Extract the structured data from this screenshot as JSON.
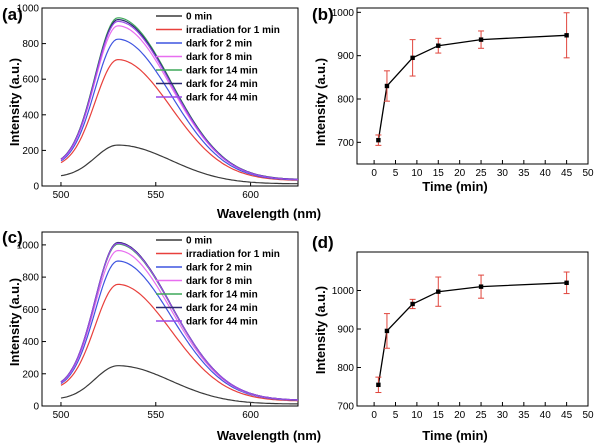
{
  "chart_data": [
    {
      "panel": "(a)",
      "type": "line",
      "xlabel": "Wavelength (nm)",
      "ylabel": "Intensity (a.u.)",
      "xlim": [
        490,
        625
      ],
      "ylim": [
        0,
        1000
      ],
      "xticks": [
        500,
        550,
        600
      ],
      "yticks": [
        0,
        200,
        400,
        600,
        800,
        1000
      ],
      "legend": "top-right",
      "peak_x": 530,
      "series": [
        {
          "name": "0 min",
          "color": "#3a3a3a",
          "start": 50,
          "peak": 230,
          "end": 12
        },
        {
          "name": "irradiation for 1 min",
          "color": "#e8403c",
          "start": 105,
          "peak": 710,
          "end": 30
        },
        {
          "name": "dark for 2 min",
          "color": "#3f55e0",
          "start": 110,
          "peak": 825,
          "end": 32
        },
        {
          "name": "dark for 8 min",
          "color": "#e86ef0",
          "start": 112,
          "peak": 900,
          "end": 34
        },
        {
          "name": "dark for 14  min",
          "color": "#3fa85a",
          "start": 115,
          "peak": 945,
          "end": 35
        },
        {
          "name": "dark for 24  min",
          "color": "#2a2a70",
          "start": 115,
          "peak": 935,
          "end": 35
        },
        {
          "name": "dark for 44 min",
          "color": "#9a4ae8",
          "start": 114,
          "peak": 925,
          "end": 34
        }
      ]
    },
    {
      "panel": "(b)",
      "type": "line",
      "xlabel": "Time (min)",
      "ylabel": "Intensity (a.u.)",
      "xlim": [
        -4,
        50
      ],
      "ylim": [
        650,
        1010
      ],
      "xticks": [
        0,
        5,
        10,
        15,
        20,
        25,
        30,
        35,
        40,
        45,
        50
      ],
      "yticks": [
        700,
        800,
        900,
        1000
      ],
      "x": [
        1,
        3,
        9,
        15,
        25,
        45
      ],
      "y": [
        705,
        830,
        895,
        923,
        937,
        947
      ],
      "err": [
        12,
        35,
        42,
        17,
        20,
        52
      ]
    },
    {
      "panel": "(c)",
      "type": "line",
      "xlabel": "Wavelength (nm)",
      "ylabel": "Intensity (a.u.)",
      "xlim": [
        490,
        625
      ],
      "ylim": [
        0,
        1080
      ],
      "xticks": [
        500,
        550,
        600
      ],
      "yticks": [
        0,
        200,
        400,
        600,
        800,
        1000
      ],
      "legend": "top-right",
      "peak_x": 530,
      "series": [
        {
          "name": "0 min",
          "color": "#3a3a3a",
          "start": 40,
          "peak": 250,
          "end": 12
        },
        {
          "name": "irradiation for 1 min",
          "color": "#e8403c",
          "start": 100,
          "peak": 755,
          "end": 30
        },
        {
          "name": "dark for 2 min",
          "color": "#3f55e0",
          "start": 105,
          "peak": 900,
          "end": 33
        },
        {
          "name": "dark for 8 min",
          "color": "#e86ef0",
          "start": 108,
          "peak": 965,
          "end": 34
        },
        {
          "name": "dark for 14 min",
          "color": "#3fa85a",
          "start": 110,
          "peak": 1005,
          "end": 35
        },
        {
          "name": "dark for 24 min",
          "color": "#2a2a70",
          "start": 110,
          "peak": 1015,
          "end": 35
        },
        {
          "name": "dark for 44 min",
          "color": "#9a4ae8",
          "start": 109,
          "peak": 1010,
          "end": 35
        }
      ]
    },
    {
      "panel": "(d)",
      "type": "line",
      "xlabel": "Time (min)",
      "ylabel": "Intensity (a.u.)",
      "xlim": [
        -4,
        50
      ],
      "ylim": [
        700,
        1100
      ],
      "xticks": [
        0,
        5,
        10,
        15,
        20,
        25,
        30,
        35,
        40,
        45,
        50
      ],
      "yticks": [
        700,
        800,
        900,
        1000
      ],
      "x": [
        1,
        3,
        9,
        15,
        25,
        45
      ],
      "y": [
        755,
        895,
        965,
        997,
        1010,
        1020
      ],
      "err": [
        20,
        45,
        12,
        38,
        30,
        28
      ]
    }
  ]
}
